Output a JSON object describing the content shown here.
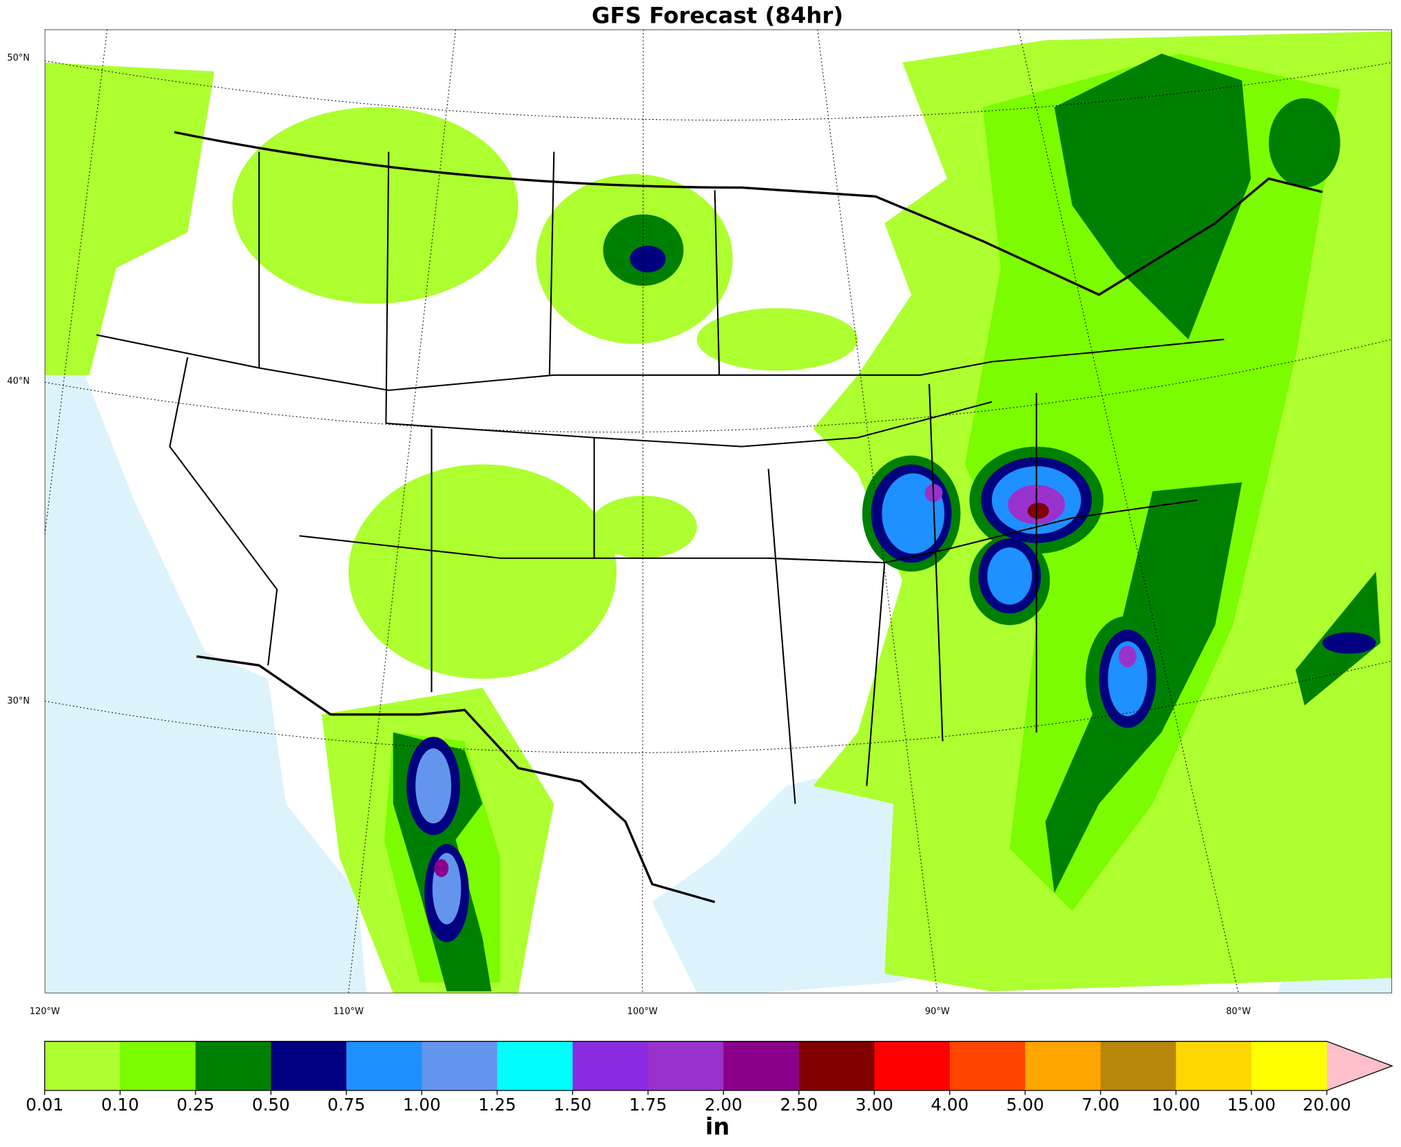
{
  "title": "GFS Forecast (84hr)",
  "lat_labels": [
    "50°N",
    "40°N",
    "30°N"
  ],
  "lon_labels": [
    "120°W",
    "110°W",
    "100°W",
    "90°W",
    "80°W"
  ],
  "colorbar": {
    "unit": "in",
    "ticks": [
      {
        "value": 0.01,
        "label": "0.01"
      },
      {
        "value": 0.1,
        "label": "0.10"
      },
      {
        "value": 0.25,
        "label": "0.25"
      },
      {
        "value": 0.5,
        "label": "0.50"
      },
      {
        "value": 0.75,
        "label": "0.75"
      },
      {
        "value": 1,
        "label": "1.00"
      },
      {
        "value": 1.25,
        "label": "1.25"
      },
      {
        "value": 1.5,
        "label": "1.50"
      },
      {
        "value": 1.75,
        "label": "1.75"
      },
      {
        "value": 2,
        "label": "2.00"
      },
      {
        "value": 2.5,
        "label": "2.50"
      },
      {
        "value": 3,
        "label": "3.00"
      },
      {
        "value": 4,
        "label": "4.00"
      },
      {
        "value": 5,
        "label": "5.00"
      },
      {
        "value": 7,
        "label": "7.00"
      },
      {
        "value": 10,
        "label": "10.00"
      },
      {
        "value": 15,
        "label": "15.00"
      },
      {
        "value": 20,
        "label": "20.00"
      }
    ],
    "colors": [
      "#adff2f",
      "#7cfc00",
      "#008000",
      "#000080",
      "#1e90ff",
      "#6495ed",
      "#00ffff",
      "#8a2be2",
      "#9932cc",
      "#8b008b",
      "#800000",
      "#ff0000",
      "#ff4500",
      "#ffa500",
      "#b8860b",
      "#ffd700",
      "#ffff00"
    ],
    "over_color": "#ffc0cb"
  }
}
